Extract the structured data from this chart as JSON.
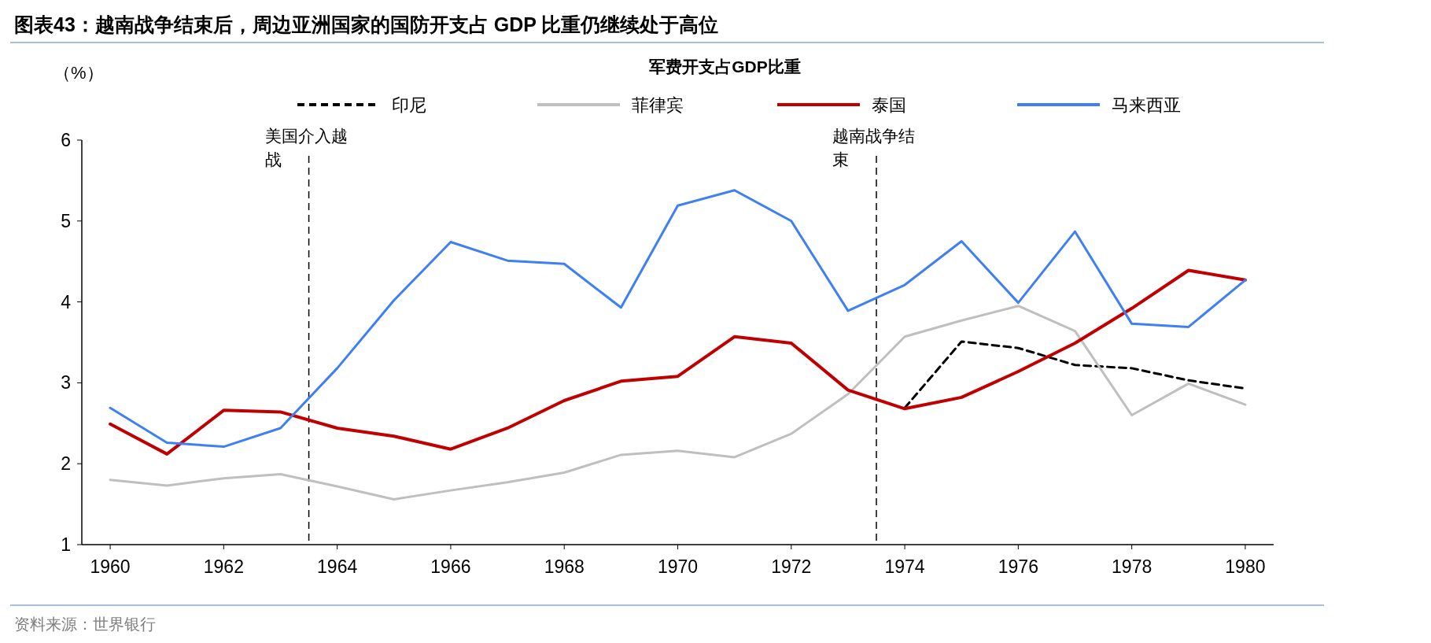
{
  "chart_data": {
    "type": "line",
    "title": "图表43：越南战争结束后，周边亚洲国家的国防开支占 GDP 比重仍继续处于高位",
    "subtitle": "军费开支占GDP比重",
    "ylabel": "（%）",
    "x": [
      1960,
      1961,
      1962,
      1963,
      1964,
      1965,
      1966,
      1967,
      1968,
      1969,
      1970,
      1971,
      1972,
      1973,
      1974,
      1975,
      1976,
      1977,
      1978,
      1979,
      1980
    ],
    "xlim": [
      1959.5,
      1980.5
    ],
    "xticks": [
      1960,
      1962,
      1964,
      1966,
      1968,
      1970,
      1972,
      1974,
      1976,
      1978,
      1980
    ],
    "ylim": [
      1,
      6
    ],
    "yticks": [
      1,
      2,
      3,
      4,
      5,
      6
    ],
    "grid": false,
    "legend": "top",
    "series": [
      {
        "name": "印尼",
        "color": "#000000",
        "line_style": "dashed",
        "values": [
          null,
          null,
          null,
          null,
          null,
          null,
          null,
          null,
          null,
          null,
          null,
          null,
          null,
          null,
          2.69,
          3.51,
          3.43,
          3.22,
          3.18,
          3.03,
          2.93
        ]
      },
      {
        "name": "菲律宾",
        "color": "#bfbfbf",
        "values": [
          1.8,
          1.73,
          1.82,
          1.87,
          1.72,
          1.56,
          1.67,
          1.77,
          1.89,
          2.11,
          2.16,
          2.08,
          2.37,
          2.86,
          3.57,
          3.77,
          3.95,
          3.64,
          2.6,
          2.99,
          2.73
        ]
      },
      {
        "name": "泰国",
        "color": "#c00000",
        "values": [
          2.49,
          2.12,
          2.66,
          2.64,
          2.44,
          2.34,
          2.18,
          2.44,
          2.78,
          3.02,
          3.08,
          3.57,
          3.49,
          2.91,
          2.68,
          2.82,
          3.14,
          3.49,
          3.92,
          4.39,
          4.27
        ]
      },
      {
        "name": "马来西亚",
        "color": "#3f7ff5",
        "values": [
          2.69,
          2.26,
          2.21,
          2.44,
          3.18,
          4.02,
          4.74,
          4.51,
          4.47,
          3.93,
          5.19,
          5.38,
          5.0,
          3.89,
          4.21,
          4.75,
          3.99,
          4.87,
          3.73,
          3.69,
          4.27
        ]
      }
    ],
    "ref_lines": [
      {
        "axis": "x",
        "value": 1963.5,
        "label": "美国介入越战",
        "color": "#000000",
        "line_style": "dashed"
      },
      {
        "axis": "x",
        "value": 1973.5,
        "label": "越南战争结束",
        "color": "#000000",
        "line_style": "dashed"
      }
    ],
    "annotations": [
      "资料来源：世界银行"
    ]
  }
}
